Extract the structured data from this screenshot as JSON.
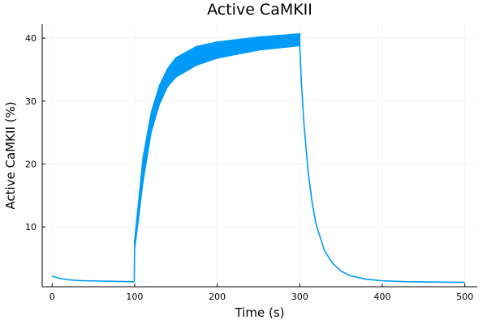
{
  "chart_data": {
    "type": "line",
    "title": "Active CaMKII",
    "xlabel": "Time (s)",
    "ylabel": "Active CaMKII (%)",
    "xlim": [
      -12,
      515
    ],
    "ylim": [
      0.5,
      42.2
    ],
    "xticks": [
      0,
      100,
      200,
      300,
      400,
      500
    ],
    "yticks": [
      10,
      20,
      30,
      40
    ],
    "grid": true,
    "legend": false,
    "series": [
      {
        "color": "#009af9",
        "oscillation_band": {
          "x_start": 100,
          "x_end": 300,
          "lower": [
            [
              100,
              6.5
            ],
            [
              105,
              11.5
            ],
            [
              110,
              17.0
            ],
            [
              120,
              25.0
            ],
            [
              130,
              29.5
            ],
            [
              140,
              32.3
            ],
            [
              150,
              33.8
            ],
            [
              175,
              35.7
            ],
            [
              200,
              36.8
            ],
            [
              250,
              38.1
            ],
            [
              300,
              38.8
            ]
          ],
          "upper": [
            [
              100,
              8.0
            ],
            [
              105,
              14.5
            ],
            [
              110,
              21.0
            ],
            [
              120,
              28.2
            ],
            [
              130,
              32.5
            ],
            [
              140,
              35.2
            ],
            [
              150,
              36.9
            ],
            [
              175,
              38.7
            ],
            [
              200,
              39.4
            ],
            [
              250,
              40.2
            ],
            [
              300,
              40.7
            ]
          ]
        },
        "points": [
          [
            0,
            2.2
          ],
          [
            5,
            2.0
          ],
          [
            10,
            1.8
          ],
          [
            20,
            1.6
          ],
          [
            30,
            1.5
          ],
          [
            40,
            1.45
          ],
          [
            60,
            1.4
          ],
          [
            80,
            1.35
          ],
          [
            99.5,
            1.3
          ],
          [
            300,
            38.8
          ],
          [
            302,
            33.0
          ],
          [
            305,
            26.5
          ],
          [
            310,
            19.0
          ],
          [
            315,
            13.8
          ],
          [
            320,
            10.3
          ],
          [
            330,
            6.2
          ],
          [
            340,
            4.2
          ],
          [
            350,
            3.0
          ],
          [
            360,
            2.3
          ],
          [
            380,
            1.7
          ],
          [
            400,
            1.45
          ],
          [
            430,
            1.3
          ],
          [
            460,
            1.25
          ],
          [
            500,
            1.2
          ]
        ]
      }
    ]
  }
}
